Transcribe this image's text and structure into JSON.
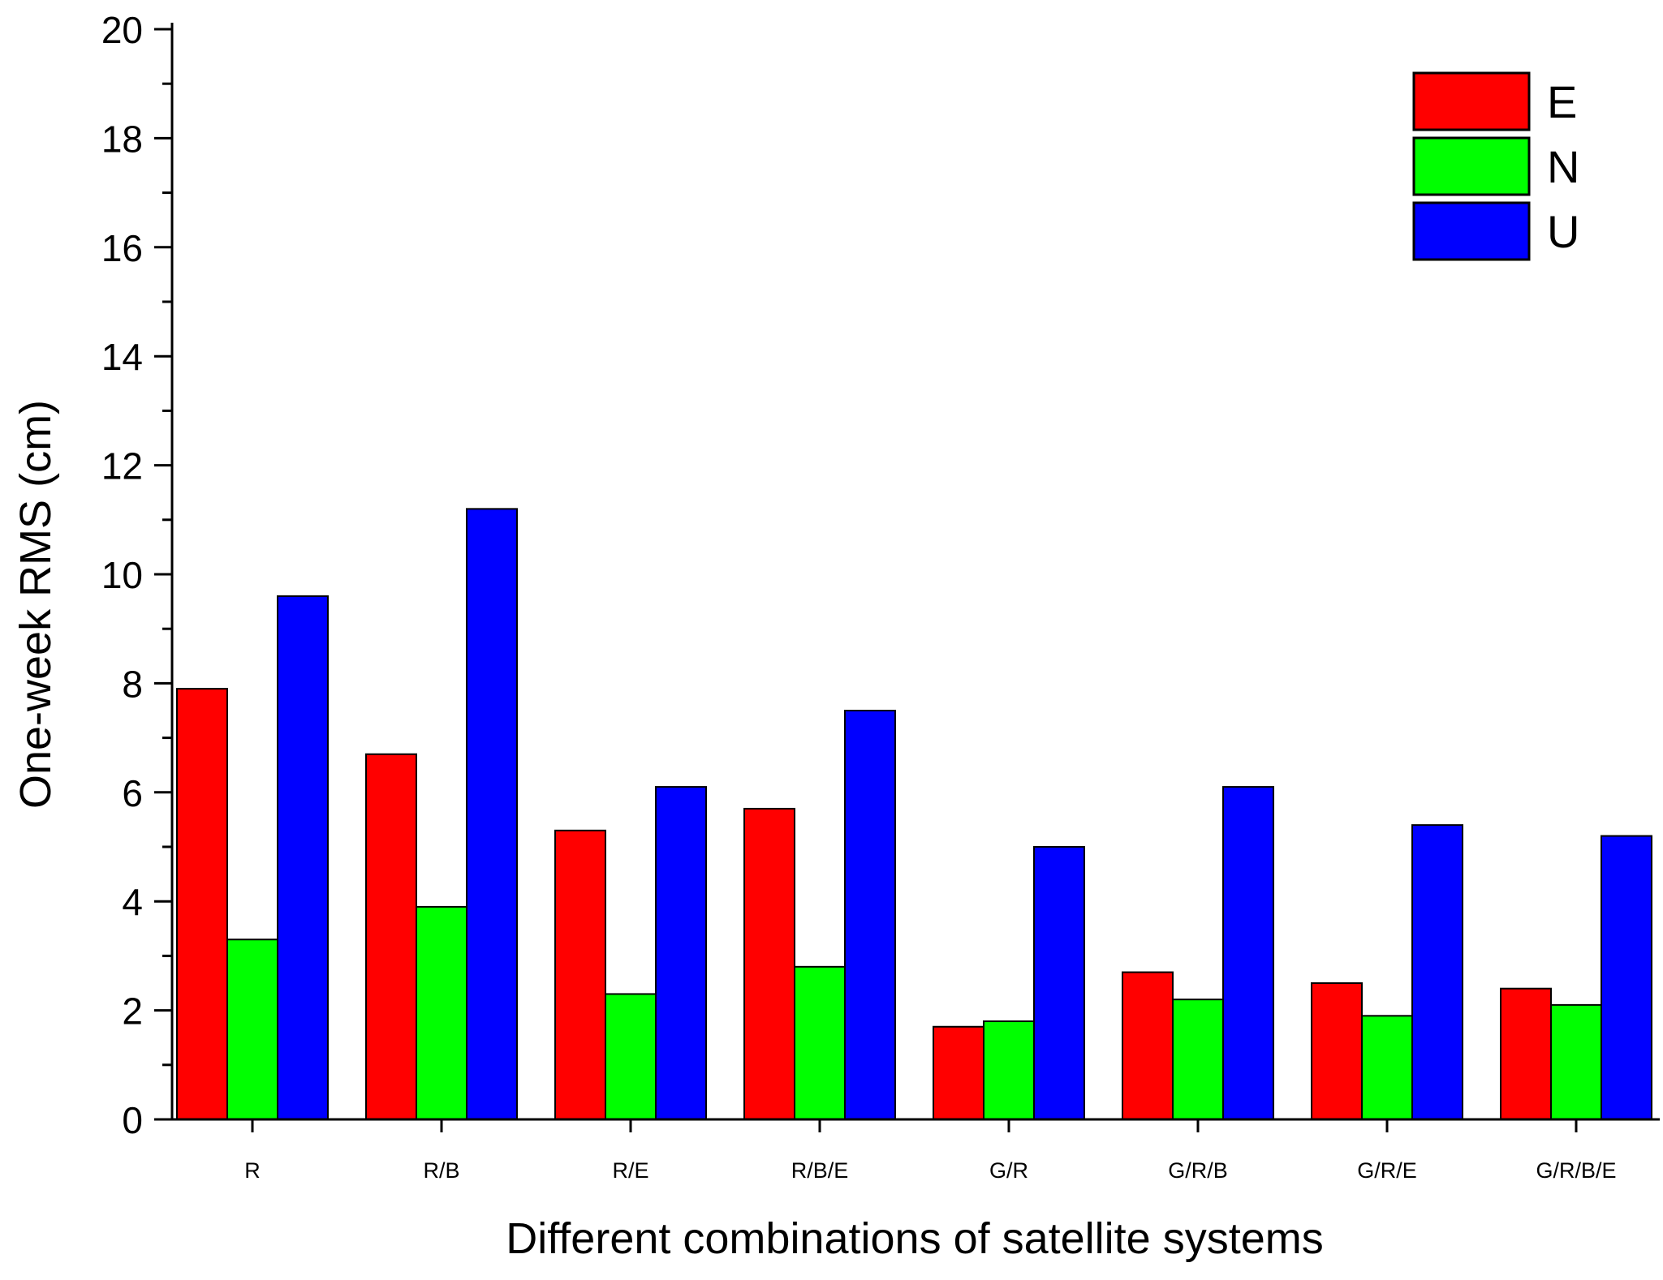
{
  "chart_data": {
    "type": "bar",
    "xlabel": "Different combinations of satellite systems",
    "ylabel": "One-week RMS (cm)",
    "categories": [
      "R",
      "R/B",
      "R/E",
      "R/B/E",
      "G/R",
      "G/R/B",
      "G/R/E",
      "G/R/B/E"
    ],
    "series": [
      {
        "name": "E",
        "color": "#ff0000",
        "values": [
          7.9,
          6.7,
          5.3,
          5.7,
          1.7,
          2.7,
          2.5,
          2.4
        ]
      },
      {
        "name": "N",
        "color": "#00ff00",
        "values": [
          3.3,
          3.9,
          2.3,
          2.8,
          1.8,
          2.2,
          1.9,
          2.1
        ]
      },
      {
        "name": "U",
        "color": "#0000ff",
        "values": [
          9.6,
          11.2,
          6.1,
          7.5,
          5.0,
          6.1,
          5.4,
          5.2
        ]
      }
    ],
    "ylim": [
      0,
      20
    ],
    "yticks": [
      0,
      2,
      4,
      6,
      8,
      10,
      12,
      14,
      16,
      18,
      20
    ],
    "grid": false,
    "legend_position": "top-right"
  }
}
